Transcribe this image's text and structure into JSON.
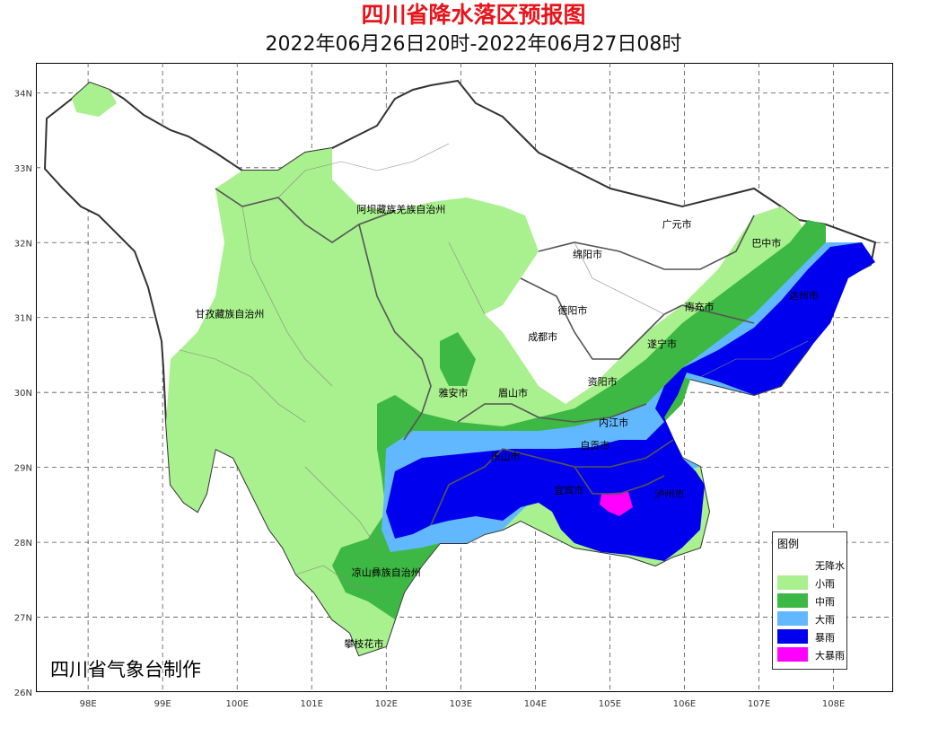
{
  "title": "四川省降水落区预报图",
  "subtitle": "2022年06月26日20时-2022年06月27日08时",
  "producer": "四川省气象台制作",
  "axes": {
    "x_ticks": [
      "98E",
      "99E",
      "100E",
      "101E",
      "102E",
      "103E",
      "104E",
      "105E",
      "106E",
      "107E",
      "108E"
    ],
    "y_ticks": [
      "34N",
      "33N",
      "32N",
      "31N",
      "30N",
      "29N",
      "28N",
      "27N",
      "26N"
    ]
  },
  "cities": [
    {
      "name": "阿坝藏族羌族自治州",
      "lon": 102.2,
      "lat": 32.4
    },
    {
      "name": "甘孜藏族自治州",
      "lon": 99.9,
      "lat": 31.0
    },
    {
      "name": "绵阳市",
      "lon": 104.7,
      "lat": 31.8
    },
    {
      "name": "广元市",
      "lon": 105.9,
      "lat": 32.2
    },
    {
      "name": "巴中市",
      "lon": 107.1,
      "lat": 31.95
    },
    {
      "name": "达州市",
      "lon": 107.6,
      "lat": 31.25
    },
    {
      "name": "南充市",
      "lon": 106.2,
      "lat": 31.1
    },
    {
      "name": "德阳市",
      "lon": 104.5,
      "lat": 31.05
    },
    {
      "name": "成都市",
      "lon": 104.1,
      "lat": 30.7
    },
    {
      "name": "遂宁市",
      "lon": 105.7,
      "lat": 30.6
    },
    {
      "name": "资阳市",
      "lon": 104.9,
      "lat": 30.1
    },
    {
      "name": "雅安市",
      "lon": 102.9,
      "lat": 29.95
    },
    {
      "name": "眉山市",
      "lon": 103.7,
      "lat": 29.95
    },
    {
      "name": "内江市",
      "lon": 105.05,
      "lat": 29.55
    },
    {
      "name": "乐山市",
      "lon": 103.6,
      "lat": 29.1
    },
    {
      "name": "自贡市",
      "lon": 104.8,
      "lat": 29.25
    },
    {
      "name": "宜宾市",
      "lon": 104.45,
      "lat": 28.65
    },
    {
      "name": "泸州市",
      "lon": 105.8,
      "lat": 28.6
    },
    {
      "name": "凉山彝族自治州",
      "lon": 102.0,
      "lat": 27.55
    },
    {
      "name": "攀枝花市",
      "lon": 101.7,
      "lat": 26.6
    }
  ],
  "legend": {
    "title": "图例",
    "items": [
      {
        "label": "无降水",
        "color": "#ffffff"
      },
      {
        "label": "小雨",
        "color": "#a9f08e"
      },
      {
        "label": "中雨",
        "color": "#3db844"
      },
      {
        "label": "大雨",
        "color": "#62b8ff"
      },
      {
        "label": "暴雨",
        "color": "#0000ee"
      },
      {
        "label": "大暴雨",
        "color": "#ff00ff"
      }
    ]
  }
}
